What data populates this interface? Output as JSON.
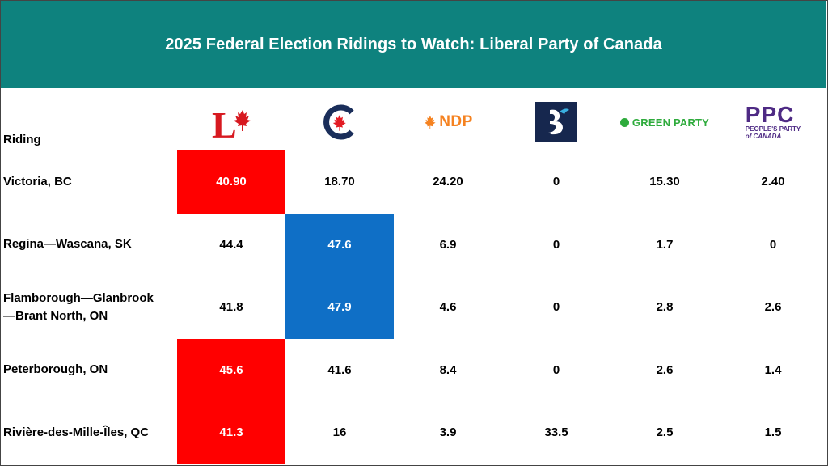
{
  "title": "2025 Federal Election Ridings to Watch: Liberal Party of Canada",
  "riding_header": "Riding",
  "colors": {
    "banner": "#0e827e",
    "liberal": "#ff0000",
    "conservative": "#0f6fc6"
  },
  "logos": {
    "liberal": {
      "icon": "liberal-logo-icon",
      "text": "L"
    },
    "conservative": {
      "icon": "conservative-logo-icon"
    },
    "ndp": {
      "icon": "ndp-logo-icon",
      "text": "NDP"
    },
    "bloc": {
      "icon": "bloc-logo-icon"
    },
    "green": {
      "icon": "green-logo-icon",
      "text": "GREEN PARTY"
    },
    "ppc": {
      "icon": "ppc-logo-icon",
      "big": "PPC",
      "line1": "PEOPLE'S PARTY",
      "line2": "of CANADA"
    }
  },
  "chart_data": {
    "type": "table",
    "title": "2025 Federal Election Ridings to Watch: Liberal Party of Canada",
    "columns": [
      "Riding",
      "Liberal",
      "Conservative",
      "NDP",
      "Bloc Québécois",
      "Green Party",
      "People's Party of Canada"
    ],
    "rows": [
      {
        "riding": [
          "Victoria, BC"
        ],
        "values": [
          "40.90",
          "18.70",
          "24.20",
          "0",
          "15.30",
          "2.40"
        ],
        "winner": "liberal"
      },
      {
        "riding": [
          "Regina—Wascana, SK"
        ],
        "values": [
          "44.4",
          "47.6",
          "6.9",
          "0",
          "1.7",
          "0"
        ],
        "winner": "conservative"
      },
      {
        "riding": [
          "Flamborough—Glanbrook",
          "—Brant North, ON"
        ],
        "values": [
          "41.8",
          "47.9",
          "4.6",
          "0",
          "2.8",
          "2.6"
        ],
        "winner": "conservative"
      },
      {
        "riding": [
          "Peterborough, ON"
        ],
        "values": [
          "45.6",
          "41.6",
          "8.4",
          "0",
          "2.6",
          "1.4"
        ],
        "winner": "liberal"
      },
      {
        "riding": [
          "Rivière-des-Mille-Îles, QC"
        ],
        "values": [
          "41.3",
          "16",
          "3.9",
          "33.5",
          "2.5",
          "1.5"
        ],
        "winner": "liberal"
      }
    ]
  }
}
